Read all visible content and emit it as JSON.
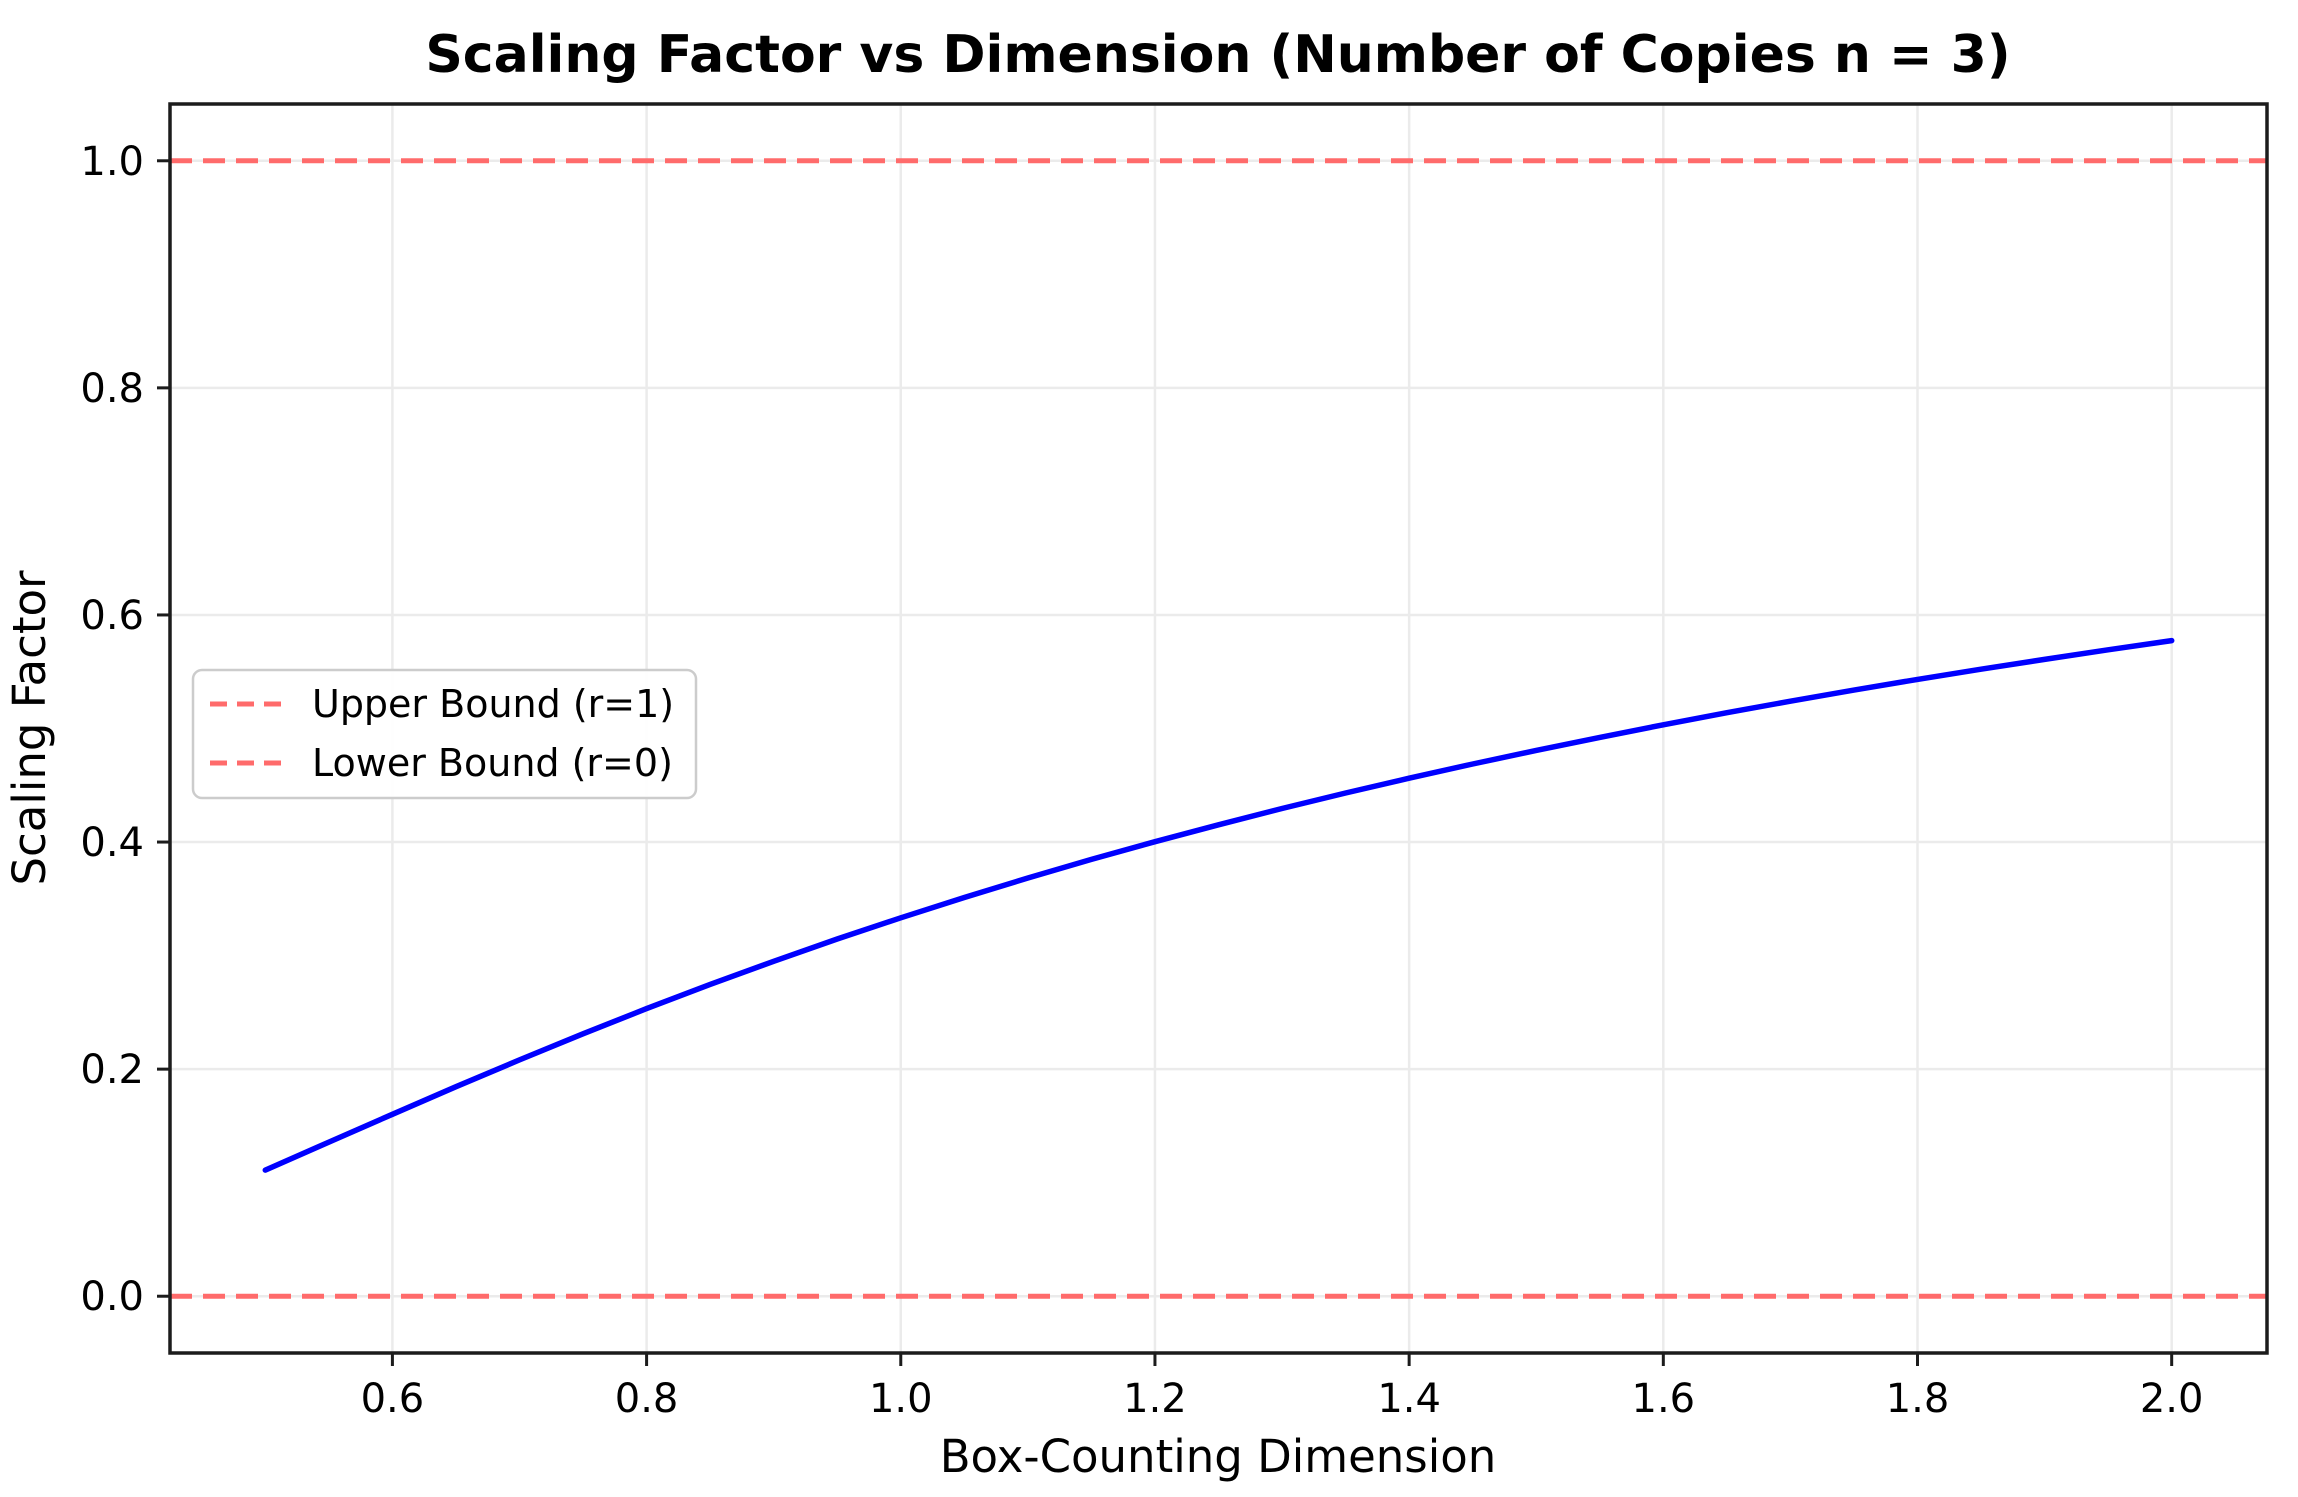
{
  "chart_data": {
    "type": "line",
    "title": "Scaling Factor vs Dimension (Number of Copies n = 3)",
    "xlabel": "Box-Counting Dimension",
    "ylabel": "Scaling Factor",
    "xlim": [
      0.425,
      2.075
    ],
    "ylim": [
      -0.05,
      1.05
    ],
    "x_ticks": [
      0.6,
      0.8,
      1.0,
      1.2,
      1.4,
      1.6,
      1.8,
      2.0
    ],
    "x_tick_labels": [
      "0.6",
      "0.8",
      "1.0",
      "1.2",
      "1.4",
      "1.6",
      "1.8",
      "2.0"
    ],
    "y_ticks": [
      0.0,
      0.2,
      0.4,
      0.6,
      0.8,
      1.0
    ],
    "y_tick_labels": [
      "0.0",
      "0.2",
      "0.4",
      "0.6",
      "0.8",
      "1.0"
    ],
    "grid": true,
    "grid_color": "#ebebeb",
    "series": [
      {
        "name": "scaling-factor-curve",
        "color": "#0000ff",
        "linestyle": "solid",
        "x": [
          0.5,
          0.55,
          0.6,
          0.65,
          0.7,
          0.75,
          0.8,
          0.85,
          0.9,
          0.95,
          1.0,
          1.05,
          1.1,
          1.15,
          1.2,
          1.25,
          1.3,
          1.35,
          1.4,
          1.45,
          1.5,
          1.55,
          1.6,
          1.65,
          1.7,
          1.75,
          1.8,
          1.85,
          1.9,
          1.95,
          2.0
        ],
        "y": [
          0.1111,
          0.1357,
          0.1602,
          0.1845,
          0.2081,
          0.2311,
          0.2533,
          0.2746,
          0.295,
          0.3146,
          0.3333,
          0.3512,
          0.3683,
          0.3847,
          0.4003,
          0.4152,
          0.4295,
          0.4432,
          0.4562,
          0.4687,
          0.4807,
          0.4922,
          0.5033,
          0.5139,
          0.524,
          0.5338,
          0.5432,
          0.5522,
          0.5609,
          0.5693,
          0.5774
        ]
      }
    ],
    "reference_lines": [
      {
        "label": "Upper Bound (r=1)",
        "y": 1.0,
        "color": "#ff6b6b",
        "linestyle": "dashed"
      },
      {
        "label": "Lower Bound (r=0)",
        "y": 0.0,
        "color": "#ff6b6b",
        "linestyle": "dashed"
      }
    ],
    "legend": {
      "position": "center-left",
      "items": [
        {
          "label": "Upper Bound (r=1)",
          "color": "#ff6b6b",
          "linestyle": "dashed"
        },
        {
          "label": "Lower Bound (r=0)",
          "color": "#ff6b6b",
          "linestyle": "dashed"
        }
      ]
    },
    "colors": {
      "curve": "#0000ff",
      "bounds": "#ff6b6b",
      "spine": "#1c1c1c",
      "grid": "#ebebeb",
      "legend_border": "#cccccc"
    }
  }
}
